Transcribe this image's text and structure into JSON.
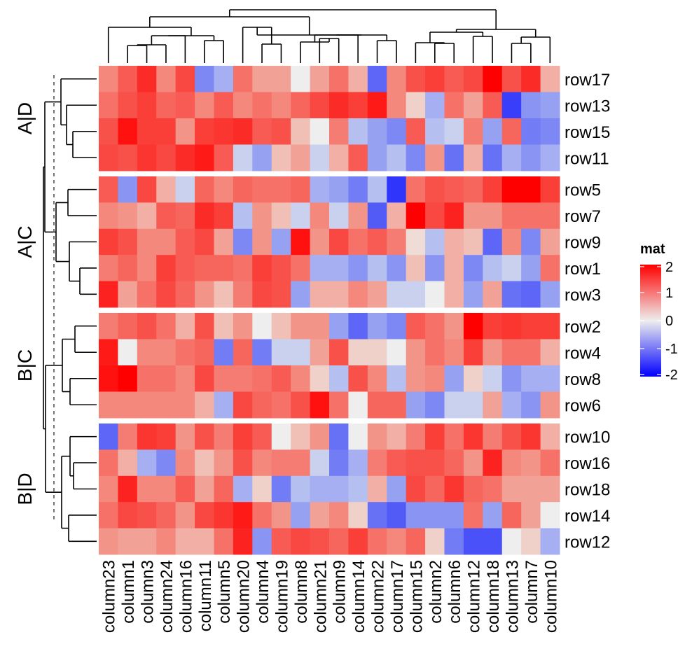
{
  "chart_data": {
    "type": "heatmap",
    "title": "",
    "legend": {
      "title": "mat",
      "ticks": [
        2,
        1,
        0,
        -1,
        -2
      ],
      "placement": "right",
      "colors": {
        "high": "#ff0000",
        "mid": "#eeeeee",
        "low": "#0000ff"
      },
      "range": [
        -2,
        2
      ]
    },
    "columns": [
      "column23",
      "column1",
      "column3",
      "column24",
      "column16",
      "column11",
      "column5",
      "column20",
      "column4",
      "column19",
      "column8",
      "column21",
      "column9",
      "column14",
      "column22",
      "column17",
      "column15",
      "column2",
      "column6",
      "column12",
      "column18",
      "column13",
      "column7",
      "column10"
    ],
    "row_splits": [
      {
        "label": "A|D",
        "rows": [
          "row17",
          "row13",
          "row15",
          "row11"
        ]
      },
      {
        "label": "A|C",
        "rows": [
          "row5",
          "row7",
          "row9",
          "row1",
          "row3"
        ]
      },
      {
        "label": "B|C",
        "rows": [
          "row2",
          "row4",
          "row8",
          "row6"
        ]
      },
      {
        "label": "B|D",
        "rows": [
          "row10",
          "row16",
          "row18",
          "row14",
          "row12"
        ]
      }
    ],
    "values": {
      "row17": [
        0.6,
        1.0,
        1.5,
        0.6,
        1.2,
        -0.6,
        -0.3,
        0.8,
        0.4,
        0.4,
        0.0,
        0.4,
        0.8,
        0.3,
        -0.9,
        0.6,
        1.1,
        1.3,
        1.0,
        1.2,
        2.0,
        1.1,
        1.5,
        0.3
      ],
      "row13": [
        0.8,
        1.1,
        1.3,
        0.9,
        1.0,
        0.6,
        1.0,
        0.6,
        0.8,
        0.6,
        0.9,
        1.2,
        1.5,
        1.3,
        1.7,
        0.6,
        0.1,
        -0.3,
        0.8,
        0.4,
        1.0,
        -1.3,
        -0.5,
        -0.4
      ],
      "row15": [
        1.1,
        1.8,
        1.3,
        1.3,
        0.5,
        1.3,
        1.4,
        1.5,
        1.0,
        1.1,
        0.2,
        0.0,
        0.7,
        -0.2,
        -0.4,
        -0.6,
        1.0,
        -0.2,
        -0.1,
        0.7,
        -0.4,
        0.9,
        -0.7,
        -0.6
      ],
      "row11": [
        1.2,
        1.1,
        1.4,
        1.2,
        1.5,
        1.7,
        1.0,
        -0.1,
        -0.4,
        0.2,
        0.4,
        -0.1,
        0.3,
        1.0,
        -0.4,
        -0.2,
        -0.6,
        0.5,
        -0.8,
        0.3,
        -0.8,
        -0.3,
        -0.5,
        -0.3
      ],
      "row5": [
        1.0,
        -0.5,
        1.2,
        0.3,
        -0.1,
        0.9,
        0.6,
        0.9,
        0.8,
        0.8,
        0.9,
        -0.3,
        -0.4,
        -0.7,
        -0.2,
        -1.4,
        0.8,
        1.1,
        1.0,
        0.9,
        1.3,
        2.0,
        2.0,
        1.3
      ],
      "row7": [
        0.6,
        0.5,
        0.3,
        1.0,
        0.9,
        1.5,
        1.3,
        -0.2,
        0.5,
        0.2,
        -0.1,
        0.6,
        -0.1,
        0.5,
        -1.0,
        0.3,
        2.0,
        1.2,
        1.6,
        0.5,
        0.5,
        0.8,
        0.8,
        0.8
      ],
      "row9": [
        1.3,
        1.1,
        0.6,
        0.6,
        1.0,
        1.2,
        0.4,
        -0.6,
        0.5,
        -0.4,
        1.8,
        0.5,
        1.2,
        0.8,
        1.0,
        0.7,
        0.05,
        -0.2,
        0.3,
        0.2,
        -0.9,
        0.6,
        -0.6,
        0.4
      ],
      "row1": [
        0.7,
        0.9,
        0.6,
        1.3,
        1.0,
        0.9,
        0.9,
        0.8,
        1.3,
        1.1,
        0.8,
        -0.3,
        -0.3,
        -0.5,
        -0.2,
        -0.5,
        0.2,
        -0.5,
        0.3,
        -0.6,
        -0.2,
        -0.1,
        -0.4,
        0.8
      ],
      "row3": [
        1.6,
        0.4,
        0.8,
        1.2,
        0.9,
        0.5,
        0.2,
        0.7,
        1.2,
        1.1,
        -0.4,
        0.3,
        0.3,
        0.6,
        0.4,
        -0.1,
        -0.1,
        0.0,
        0.3,
        -0.4,
        0.4,
        -0.8,
        -0.9,
        -0.4
      ],
      "row2": [
        0.7,
        0.9,
        1.1,
        0.8,
        0.3,
        1.1,
        0.2,
        0.5,
        0.0,
        0.2,
        0.5,
        0.5,
        -0.4,
        -0.9,
        -0.4,
        -0.6,
        1.0,
        0.8,
        0.5,
        2.0,
        1.3,
        1.4,
        1.3,
        1.3
      ],
      "row4": [
        1.7,
        0.0,
        0.6,
        0.6,
        0.8,
        0.9,
        -0.7,
        0.9,
        -0.7,
        -0.1,
        -0.1,
        0.4,
        1.1,
        0.1,
        0.1,
        0.0,
        0.5,
        0.8,
        0.6,
        1.3,
        0.5,
        0.8,
        0.8,
        0.3
      ],
      "row8": [
        1.8,
        2.0,
        0.8,
        0.8,
        0.6,
        1.2,
        0.7,
        0.7,
        0.8,
        1.0,
        0.6,
        0.1,
        -0.2,
        1.1,
        0.6,
        -0.2,
        0.5,
        0.6,
        -0.4,
        0.1,
        -0.1,
        -0.5,
        -0.3,
        -0.3
      ],
      "row6": [
        0.6,
        0.6,
        0.6,
        0.6,
        0.6,
        0.3,
        -0.3,
        1.2,
        0.9,
        0.8,
        1.1,
        1.8,
        0.8,
        0.0,
        0.9,
        0.9,
        -0.4,
        -0.6,
        -0.1,
        -0.1,
        0.4,
        -0.3,
        -0.5,
        0.5
      ],
      "row10": [
        -0.9,
        0.7,
        1.4,
        1.3,
        0.5,
        1.1,
        0.7,
        1.3,
        1.0,
        0.0,
        0.2,
        0.5,
        -0.8,
        0.0,
        0.5,
        0.3,
        0.7,
        1.3,
        0.8,
        1.4,
        0.7,
        1.1,
        1.4,
        0.3
      ],
      "row16": [
        0.8,
        0.3,
        -0.3,
        -0.6,
        0.6,
        0.2,
        0.5,
        1.1,
        0.6,
        0.7,
        0.7,
        -0.1,
        -0.7,
        -0.3,
        0.7,
        1.0,
        1.1,
        1.1,
        0.9,
        0.5,
        1.6,
        0.6,
        0.5,
        0.8
      ],
      "row18": [
        0.6,
        1.6,
        0.6,
        0.6,
        1.0,
        0.4,
        0.9,
        -0.3,
        0.1,
        -0.7,
        -0.2,
        -0.3,
        -0.3,
        -0.2,
        0.3,
        -0.4,
        1.2,
        0.9,
        1.4,
        0.9,
        0.8,
        0.4,
        0.4,
        0.4
      ],
      "row14": [
        0.8,
        1.2,
        1.1,
        0.9,
        0.5,
        1.2,
        1.4,
        1.7,
        0.8,
        0.5,
        -0.4,
        0.4,
        0.6,
        0.1,
        -0.8,
        -1.0,
        -0.5,
        -0.5,
        -0.5,
        0.8,
        -0.4,
        0.9,
        0.4,
        0.0
      ],
      "row12": [
        0.5,
        0.4,
        0.4,
        0.6,
        0.3,
        0.3,
        0.8,
        1.6,
        -0.5,
        1.0,
        1.2,
        1.1,
        0.9,
        1.3,
        0.8,
        0.6,
        0.9,
        0.1,
        -0.7,
        -1.1,
        -1.1,
        0.0,
        0.1,
        -0.3
      ]
    }
  }
}
